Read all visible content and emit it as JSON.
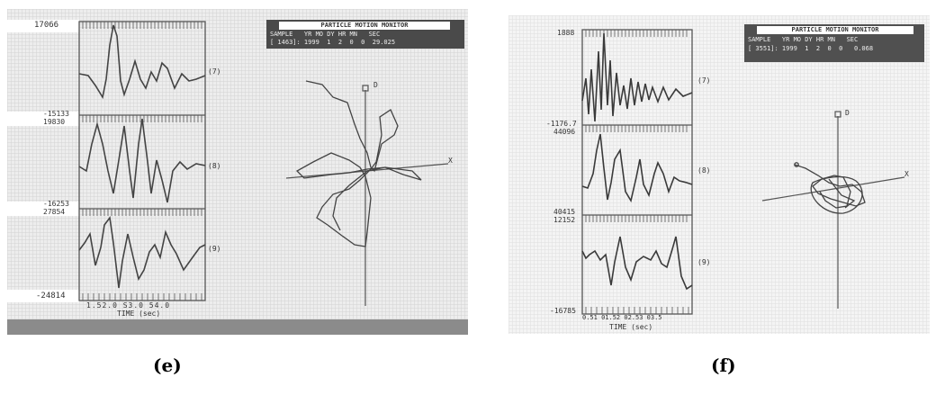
{
  "panels": [
    {
      "id": "e",
      "caption": "(e)",
      "monitor_title": "PARTICLE MOTION MONITOR",
      "header_row1": "SAMPLE   YR MO DY HR MN   SEC",
      "header_row2": "[ 1463]: 1999  1  2  0  0  29.025",
      "y_labels": [
        "17066",
        "-15133",
        "19830",
        "-16253",
        "27854",
        "-24814"
      ],
      "channel_labels": [
        "(7)",
        "(8)",
        "(9)"
      ],
      "x_ticks": "1.52.0 S3.0 54.0",
      "x_label": "TIME (sec)",
      "axis_letters": [
        "D",
        "X"
      ]
    },
    {
      "id": "f",
      "caption": "(f)",
      "monitor_title": "PARTICLE MOTION MONITOR",
      "header_row1": "SAMPLE   YR MO DY HR MN   SEC",
      "header_row2": "[ 3551]: 1999  1  2  0  0   0.068",
      "y_labels": [
        "1888",
        "-1176.7",
        "44096",
        "40415",
        "12152",
        "-16785"
      ],
      "channel_labels": [
        "(7)",
        "(8)",
        "(9)"
      ],
      "x_ticks": "0.51 01.52 02.53 03.5",
      "x_label": "TIME (sec)",
      "axis_letters": [
        "D",
        "X"
      ]
    }
  ]
}
